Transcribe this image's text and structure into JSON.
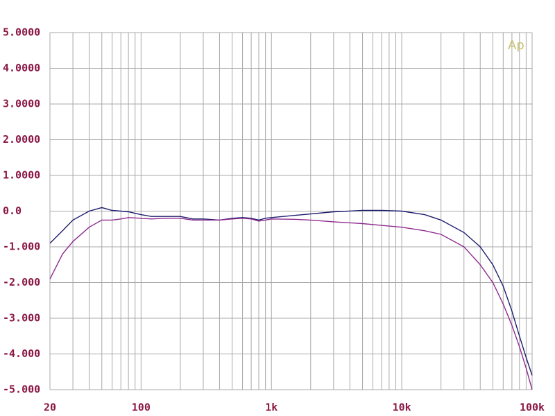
{
  "chart_data": {
    "type": "line",
    "logo": "Ap",
    "x": [
      20,
      25,
      30,
      40,
      50,
      60,
      70,
      80,
      100,
      120,
      150,
      200,
      250,
      300,
      400,
      500,
      600,
      700,
      800,
      900,
      1000,
      1500,
      2000,
      3000,
      5000,
      7000,
      10000,
      15000,
      20000,
      30000,
      40000,
      50000,
      60000,
      70000,
      80000,
      90000,
      100000
    ],
    "series": [
      {
        "color": "#1c1c6e",
        "values": [
          -0.9,
          -0.55,
          -0.25,
          0.0,
          0.1,
          0.02,
          0.0,
          -0.02,
          -0.1,
          -0.15,
          -0.15,
          -0.15,
          -0.22,
          -0.22,
          -0.25,
          -0.2,
          -0.18,
          -0.2,
          -0.25,
          -0.2,
          -0.18,
          -0.12,
          -0.08,
          -0.02,
          0.02,
          0.02,
          0.0,
          -0.1,
          -0.25,
          -0.6,
          -1.0,
          -1.5,
          -2.1,
          -2.8,
          -3.5,
          -4.1,
          -4.6
        ]
      },
      {
        "color": "#8e2a8e",
        "values": [
          -1.9,
          -1.2,
          -0.85,
          -0.45,
          -0.25,
          -0.25,
          -0.22,
          -0.18,
          -0.2,
          -0.22,
          -0.2,
          -0.2,
          -0.25,
          -0.25,
          -0.25,
          -0.22,
          -0.2,
          -0.22,
          -0.28,
          -0.25,
          -0.22,
          -0.23,
          -0.25,
          -0.3,
          -0.35,
          -0.4,
          -0.45,
          -0.55,
          -0.65,
          -1.0,
          -1.5,
          -2.0,
          -2.6,
          -3.2,
          -3.8,
          -4.4,
          -5.0
        ]
      }
    ],
    "xlog": true,
    "xlim": [
      20,
      100000
    ],
    "xticks": [
      20,
      100,
      {
        "value": 1000,
        "label": "1k"
      },
      {
        "value": 10000,
        "label": "10k"
      },
      {
        "value": 100000,
        "label": "100k"
      }
    ],
    "xminorticks": [
      30,
      40,
      50,
      60,
      70,
      80,
      90,
      200,
      300,
      400,
      500,
      600,
      700,
      800,
      900,
      2000,
      3000,
      4000,
      5000,
      6000,
      7000,
      8000,
      9000,
      20000,
      30000,
      40000,
      50000,
      60000,
      70000,
      80000,
      90000
    ],
    "ylim": [
      -5,
      5
    ],
    "yticks": [
      {
        "value": 5,
        "label": "5.0000"
      },
      {
        "value": 4,
        "label": "4.0000"
      },
      {
        "value": 3,
        "label": "3.0000"
      },
      {
        "value": 2,
        "label": "2.0000"
      },
      {
        "value": 1,
        "label": "1.0000"
      },
      {
        "value": 0,
        "label": "0.0"
      },
      {
        "value": -1,
        "label": "-1.000"
      },
      {
        "value": -2,
        "label": "-2.000"
      },
      {
        "value": -3,
        "label": "-3.000"
      },
      {
        "value": -4,
        "label": "-4.000"
      },
      {
        "value": -5,
        "label": "-5.000"
      }
    ],
    "grid": true
  }
}
